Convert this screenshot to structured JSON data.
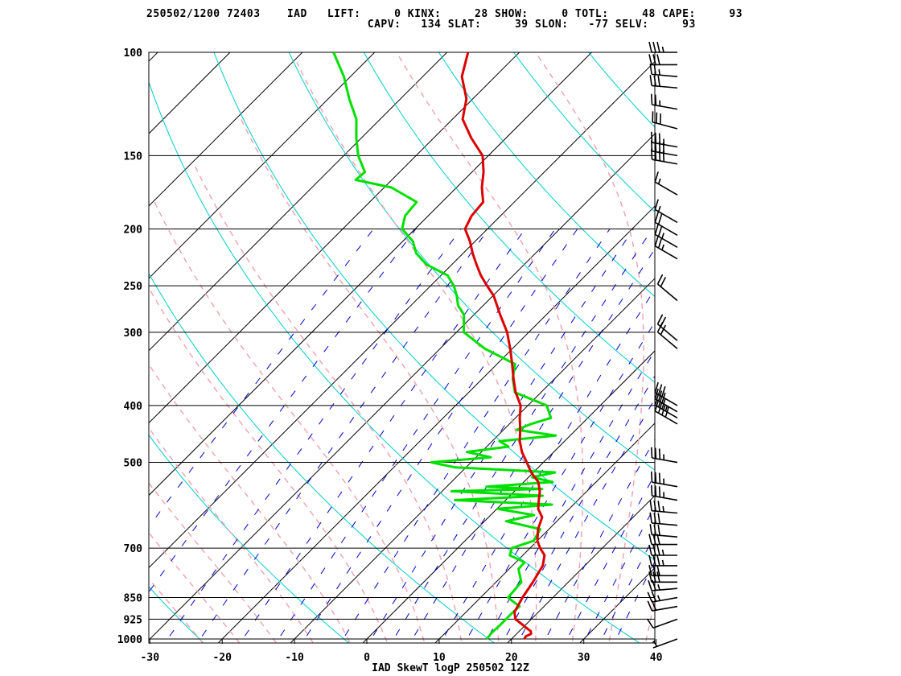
{
  "header": {
    "line1": "250502/1200 72403    IAD   LIFT:     0 KINX:     28 SHOW:     0 TOTL:     48 CAPE:     93",
    "line2": "                                 CAPV:   134 SLAT:     39 SLON:   -77 SELV:     93"
  },
  "chart_data": {
    "type": "line",
    "title": "IAD SkewT logP 250502 12Z",
    "xlabel": "",
    "ylabel": "",
    "xlim": [
      -30,
      40
    ],
    "ylim": [
      1000,
      100
    ],
    "y_scale": "log",
    "pressure_ticks": [
      100,
      150,
      200,
      250,
      300,
      400,
      500,
      700,
      850,
      925,
      1000
    ],
    "temperature_ticks": [
      -30,
      -20,
      -10,
      0,
      10,
      20,
      30,
      40
    ],
    "series": [
      {
        "color": "#dd0000",
        "points": [
          [
            1000,
            21.8
          ],
          [
            990,
            21.6
          ],
          [
            980,
            22.0
          ],
          [
            970,
            21.6
          ],
          [
            925,
            17.8
          ],
          [
            900,
            16.7
          ],
          [
            850,
            15.8
          ],
          [
            800,
            15.1
          ],
          [
            750,
            14.2
          ],
          [
            720,
            13.0
          ],
          [
            700,
            11.4
          ],
          [
            680,
            10.0
          ],
          [
            650,
            8.5
          ],
          [
            620,
            7.4
          ],
          [
            600,
            5.7
          ],
          [
            580,
            4.6
          ],
          [
            560,
            3.5
          ],
          [
            540,
            2.0
          ],
          [
            520,
            -0.3
          ],
          [
            500,
            -2.3
          ],
          [
            480,
            -4.4
          ],
          [
            460,
            -6.2
          ],
          [
            440,
            -7.7
          ],
          [
            420,
            -9.4
          ],
          [
            400,
            -11.0
          ],
          [
            380,
            -13.5
          ],
          [
            360,
            -15.7
          ],
          [
            340,
            -17.9
          ],
          [
            320,
            -20.3
          ],
          [
            300,
            -23.0
          ],
          [
            280,
            -26.4
          ],
          [
            260,
            -29.9
          ],
          [
            250,
            -32.2
          ],
          [
            240,
            -34.5
          ],
          [
            230,
            -36.6
          ],
          [
            220,
            -38.7
          ],
          [
            210,
            -40.7
          ],
          [
            200,
            -43.1
          ],
          [
            190,
            -44.0
          ],
          [
            180,
            -44.3
          ],
          [
            170,
            -46.5
          ],
          [
            160,
            -48.4
          ],
          [
            150,
            -50.8
          ],
          [
            140,
            -54.8
          ],
          [
            130,
            -58.6
          ],
          [
            120,
            -60.9
          ],
          [
            110,
            -64.6
          ],
          [
            100,
            -67.1
          ]
        ]
      },
      {
        "color": "#00e000",
        "points": [
          [
            1000,
            16.6
          ],
          [
            975,
            16.4
          ],
          [
            950,
            16.5
          ],
          [
            925,
            16.5
          ],
          [
            900,
            16.5
          ],
          [
            880,
            16.6
          ],
          [
            850,
            13.8
          ],
          [
            800,
            13.5
          ],
          [
            760,
            11.3
          ],
          [
            740,
            11.2
          ],
          [
            720,
            8.2
          ],
          [
            700,
            7.5
          ],
          [
            680,
            9.5
          ],
          [
            650,
            8.8
          ],
          [
            630,
            3.0
          ],
          [
            615,
            6.0
          ],
          [
            600,
            0.1
          ],
          [
            590,
            7.0
          ],
          [
            580,
            -7.0
          ],
          [
            570,
            4.5
          ],
          [
            560,
            -8.7
          ],
          [
            555,
            3.5
          ],
          [
            550,
            -4.5
          ],
          [
            540,
            4.0
          ],
          [
            530,
            0.5
          ],
          [
            520,
            3.0
          ],
          [
            510,
            -11.5
          ],
          [
            500,
            -15.5
          ],
          [
            490,
            -8.0
          ],
          [
            480,
            -12.0
          ],
          [
            470,
            -7.0
          ],
          [
            460,
            -9.0
          ],
          [
            450,
            -2.0
          ],
          [
            440,
            -8.2
          ],
          [
            430,
            -7.0
          ],
          [
            420,
            -5.1
          ],
          [
            400,
            -7.4
          ],
          [
            380,
            -13.6
          ],
          [
            360,
            -15.8
          ],
          [
            340,
            -17.5
          ],
          [
            320,
            -23.8
          ],
          [
            300,
            -29.0
          ],
          [
            280,
            -31.4
          ],
          [
            270,
            -33.5
          ],
          [
            260,
            -35.0
          ],
          [
            250,
            -36.8
          ],
          [
            240,
            -39.1
          ],
          [
            230,
            -43.5
          ],
          [
            220,
            -46.5
          ],
          [
            210,
            -48.6
          ],
          [
            200,
            -51.8
          ],
          [
            190,
            -53.2
          ],
          [
            180,
            -53.5
          ],
          [
            170,
            -59.0
          ],
          [
            165,
            -65.0
          ],
          [
            160,
            -64.8
          ],
          [
            150,
            -68.0
          ],
          [
            140,
            -70.7
          ],
          [
            130,
            -73.3
          ],
          [
            120,
            -77.1
          ],
          [
            110,
            -80.9
          ],
          [
            100,
            -85.7
          ]
        ]
      }
    ],
    "wind_barbs": [
      {
        "p": 1000,
        "dir": 250,
        "spd": 5
      },
      {
        "p": 925,
        "dir": 250,
        "spd": 10
      },
      {
        "p": 880,
        "dir": 260,
        "spd": 20
      },
      {
        "p": 850,
        "dir": 260,
        "spd": 25
      },
      {
        "p": 820,
        "dir": 265,
        "spd": 25
      },
      {
        "p": 800,
        "dir": 270,
        "spd": 30
      },
      {
        "p": 780,
        "dir": 270,
        "spd": 30
      },
      {
        "p": 750,
        "dir": 270,
        "spd": 35
      },
      {
        "p": 720,
        "dir": 270,
        "spd": 35
      },
      {
        "p": 690,
        "dir": 270,
        "spd": 30
      },
      {
        "p": 670,
        "dir": 275,
        "spd": 30
      },
      {
        "p": 640,
        "dir": 275,
        "spd": 30
      },
      {
        "p": 610,
        "dir": 275,
        "spd": 35
      },
      {
        "p": 580,
        "dir": 280,
        "spd": 35
      },
      {
        "p": 550,
        "dir": 280,
        "spd": 35
      },
      {
        "p": 500,
        "dir": 280,
        "spd": 35
      },
      {
        "p": 430,
        "dir": 300,
        "spd": 40
      },
      {
        "p": 420,
        "dir": 300,
        "spd": 35
      },
      {
        "p": 410,
        "dir": 300,
        "spd": 30
      },
      {
        "p": 400,
        "dir": 300,
        "spd": 30
      },
      {
        "p": 320,
        "dir": 310,
        "spd": 20
      },
      {
        "p": 310,
        "dir": 310,
        "spd": 20
      },
      {
        "p": 265,
        "dir": 310,
        "spd": 20
      },
      {
        "p": 225,
        "dir": 300,
        "spd": 25
      },
      {
        "p": 215,
        "dir": 300,
        "spd": 25
      },
      {
        "p": 205,
        "dir": 300,
        "spd": 20
      },
      {
        "p": 195,
        "dir": 300,
        "spd": 15
      },
      {
        "p": 175,
        "dir": 300,
        "spd": 15
      },
      {
        "p": 155,
        "dir": 280,
        "spd": 40
      },
      {
        "p": 150,
        "dir": 280,
        "spd": 40
      },
      {
        "p": 145,
        "dir": 280,
        "spd": 35
      },
      {
        "p": 135,
        "dir": 285,
        "spd": 30
      },
      {
        "p": 125,
        "dir": 280,
        "spd": 25
      },
      {
        "p": 115,
        "dir": 275,
        "spd": 30
      },
      {
        "p": 110,
        "dir": 275,
        "spd": 25
      },
      {
        "p": 105,
        "dir": 270,
        "spd": 30
      },
      {
        "p": 100,
        "dir": 270,
        "spd": 35
      }
    ],
    "colors": {
      "temperature": "#dd0000",
      "dewpoint": "#00e000",
      "isotherm": "#000000",
      "dry_adiabat": "#00cccc",
      "moist_adiabat": "#f0a0b0",
      "mixing_ratio": "#0000cc",
      "isobar": "#000000"
    }
  }
}
